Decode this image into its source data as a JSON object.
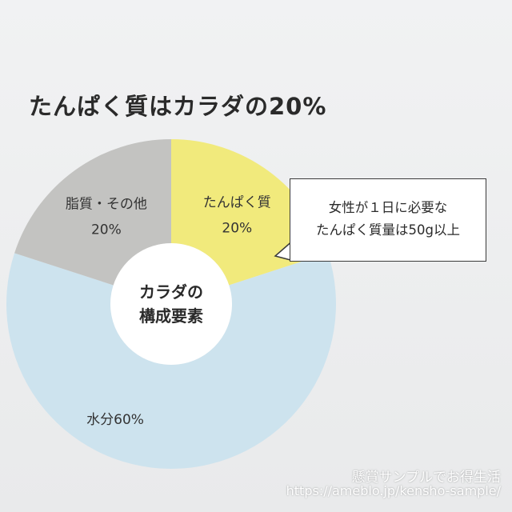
{
  "title": "たんぱく質はカラダの20%",
  "chart_data": {
    "type": "pie",
    "variant": "donut",
    "title": "たんぱく質はカラダの20%",
    "center_label": [
      "カラダの",
      "構成要素"
    ],
    "slices": [
      {
        "label": "たんぱく質",
        "pct_label": "20%",
        "value": 20,
        "color": "#f1ea7c"
      },
      {
        "label": "水分60%",
        "pct_label": "",
        "value": 60,
        "color": "#cde3ee"
      },
      {
        "label": "脂質・その他",
        "pct_label": "20%",
        "value": 20,
        "color": "#c3c3c1"
      }
    ]
  },
  "callout": {
    "lines": [
      "女性が１日に必要な",
      "たんぱく質量は50g以上"
    ]
  },
  "watermark": {
    "line1": "懸賞サンプルでお得生活",
    "line2": "https://ameblo.jp/kensho-sample/"
  }
}
